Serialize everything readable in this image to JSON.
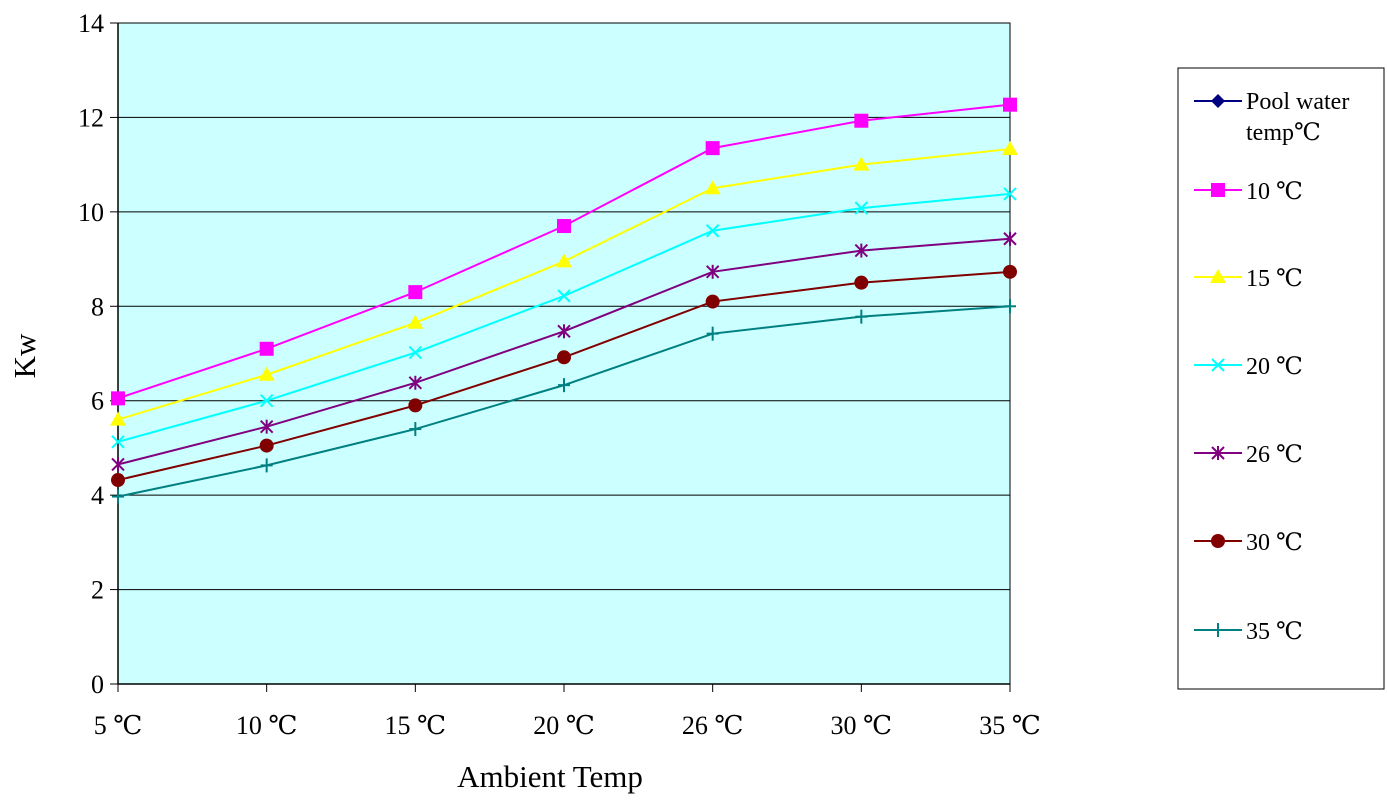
{
  "chart_data": {
    "type": "line",
    "title": "",
    "xlabel": "Ambient Temp",
    "ylabel": "Kw",
    "ylim": [
      0,
      14
    ],
    "yticks": [
      "0",
      "2",
      "4",
      "6",
      "8",
      "10",
      "12",
      "14"
    ],
    "categories": [
      "5 ℃",
      "10 ℃",
      "15 ℃",
      "20 ℃",
      "26 ℃",
      "30 ℃",
      "35 ℃"
    ],
    "grid": true,
    "plot_background": "#ccffff",
    "legend_position": "right",
    "legend_title": "Pool water temp℃",
    "legend_title_lines": [
      "Pool water",
      "temp℃"
    ],
    "legend_title_color": "#000080",
    "legend_title_marker": "diamond",
    "series": [
      {
        "name": "10 ℃",
        "color": "#ff00ff",
        "marker": "square",
        "values": [
          6.05,
          7.1,
          8.3,
          9.7,
          11.35,
          11.93,
          12.27
        ]
      },
      {
        "name": "15 ℃",
        "color": "#ffff00",
        "marker": "triangle",
        "values": [
          5.6,
          6.55,
          7.65,
          8.95,
          10.5,
          11.0,
          11.33
        ]
      },
      {
        "name": "20 ℃",
        "color": "#00ffff",
        "marker": "x",
        "values": [
          5.13,
          6.0,
          7.02,
          8.22,
          9.6,
          10.08,
          10.38
        ]
      },
      {
        "name": "26 ℃",
        "color": "#800080",
        "marker": "star",
        "values": [
          4.65,
          5.45,
          6.38,
          7.47,
          8.73,
          9.18,
          9.43
        ]
      },
      {
        "name": "30 ℃",
        "color": "#800000",
        "marker": "circle",
        "values": [
          4.32,
          5.05,
          5.9,
          6.92,
          8.1,
          8.5,
          8.73
        ]
      },
      {
        "name": "35 ℃",
        "color": "#008080",
        "marker": "plus",
        "values": [
          3.97,
          4.63,
          5.4,
          6.33,
          7.42,
          7.78,
          8.0
        ]
      }
    ]
  }
}
